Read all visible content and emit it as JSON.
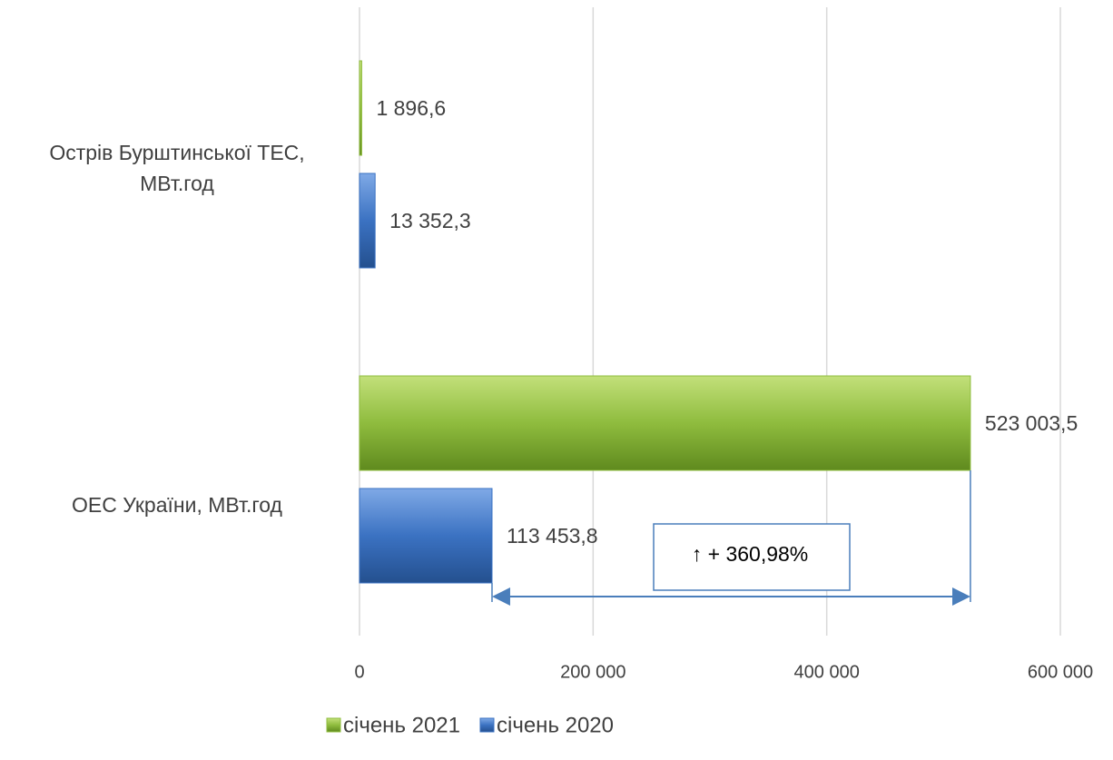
{
  "chart_data": {
    "type": "hbar",
    "categories": [
      "Острів Бурштинської ТЕС, МВт.год",
      "ОЕС України, МВт.год"
    ],
    "series": [
      {
        "name": "січень 2021",
        "color": "#8fbc3e",
        "values": [
          1896.6,
          523003.5
        ],
        "value_labels": [
          "1 896,6",
          "523 003,5"
        ]
      },
      {
        "name": "січень 2020",
        "color": "#3b72c2",
        "values": [
          13352.3,
          113453.8
        ],
        "value_labels": [
          "13 352,3",
          "113 453,8"
        ]
      }
    ],
    "xlim": [
      0,
      600000
    ],
    "xticks": [
      0,
      {
        "value": 200000,
        "label": "200 000"
      },
      {
        "value": 400000,
        "label": "400 000"
      },
      {
        "value": 600000,
        "label": "600 000"
      }
    ],
    "grid": true,
    "legend": "bottom",
    "annotation": "↑ + 360,98%"
  }
}
